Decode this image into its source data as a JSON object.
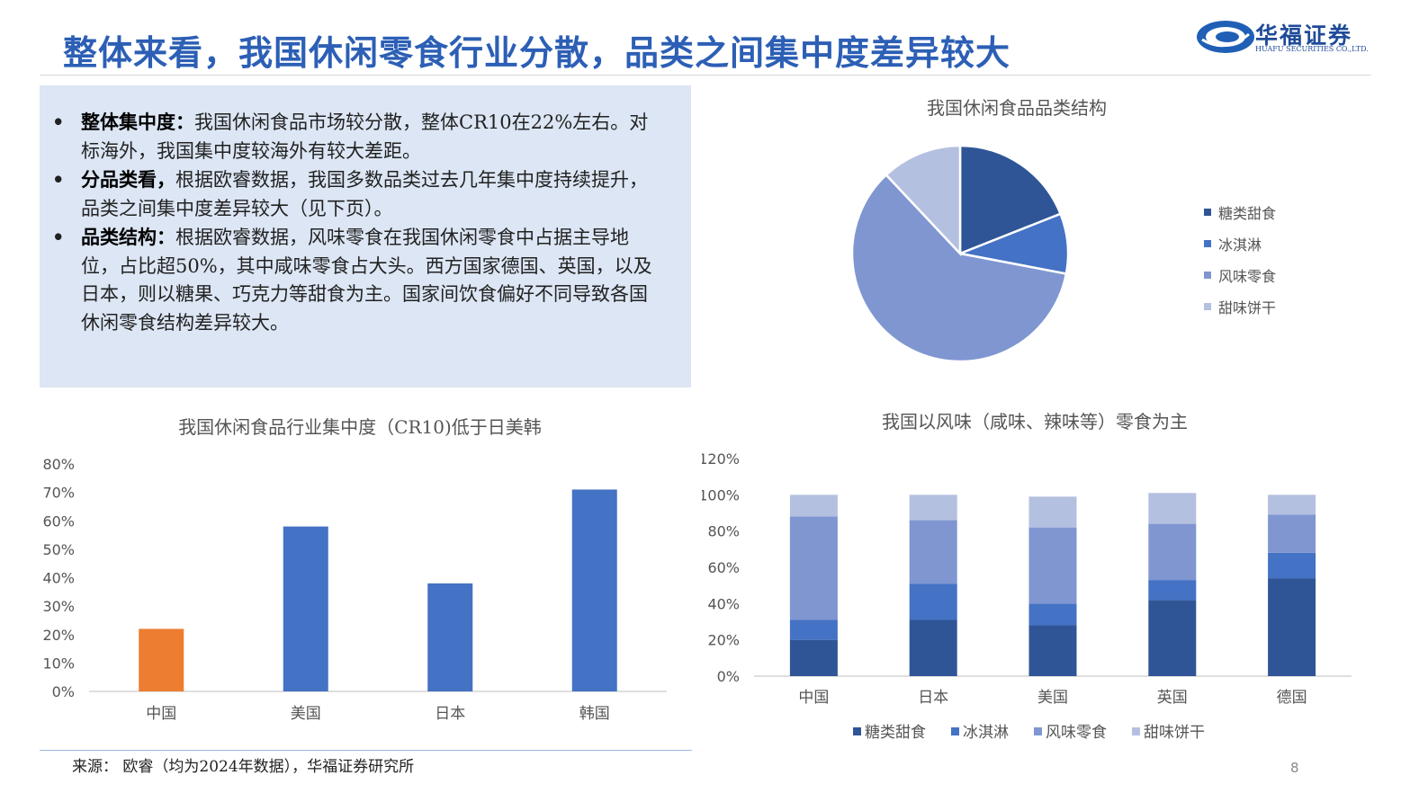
{
  "header": {
    "title": "整体来看，我国休闲零食行业分散，品类之间集中度差异较大",
    "logo_cn": "华福证券",
    "logo_en": "HUAFU SECURITIES CO.,LTD."
  },
  "bullets": [
    {
      "lead": "整体集中度：",
      "text": "我国休闲食品市场较分散，整体CR10在22%左右。对标海外，我国集中度较海外有较大差距。"
    },
    {
      "lead": "分品类看，",
      "text": "根据欧睿数据，我国多数品类过去几年集中度持续提升，品类之间集中度差异较大（见下页）。"
    },
    {
      "lead": "品类结构：",
      "text": "根据欧睿数据，风味零食在我国休闲零食中占据主导地位，占比超50%，其中咸味零食占大头。西方国家德国、英国，以及日本，则以糖果、巧克力等甜食为主。国家间饮食偏好不同导致各国休闲零食结构差异较大。"
    }
  ],
  "bullet_symbol": "•",
  "footer": {
    "source": "来源： 欧睿（均为2024年数据），华福证券研究所",
    "page": "8"
  },
  "chart_data": [
    {
      "type": "pie",
      "title": "我国休闲食品品类结构",
      "categories": [
        "糖类甜食",
        "冰淇淋",
        "风味零食",
        "甜味饼干"
      ],
      "values": [
        19,
        9,
        60,
        12
      ],
      "colors": [
        "#2f5597",
        "#4472c4",
        "#7f96d1",
        "#b4c0e0"
      ],
      "legend": "right"
    },
    {
      "type": "bar",
      "title": "我国休闲食品行业集中度（CR10)低于日美韩",
      "categories": [
        "中国",
        "美国",
        "日本",
        "韩国"
      ],
      "values": [
        22,
        58,
        38,
        71
      ],
      "colors": [
        "#ed7d31",
        "#4472c4",
        "#4472c4",
        "#4472c4"
      ],
      "ylim": [
        0,
        80
      ],
      "yticks": [
        "0%",
        "10%",
        "20%",
        "30%",
        "40%",
        "50%",
        "60%",
        "70%",
        "80%"
      ],
      "grid": false
    },
    {
      "type": "bar",
      "stacked": true,
      "title": "我国以风味（咸味、辣味等）零食为主",
      "categories": [
        "中国",
        "日本",
        "美国",
        "英国",
        "德国"
      ],
      "series": [
        {
          "name": "糖类甜食",
          "values": [
            20,
            31,
            28,
            42,
            54
          ],
          "color": "#2f5597"
        },
        {
          "name": "冰淇淋",
          "values": [
            11,
            20,
            12,
            11,
            14
          ],
          "color": "#4472c4"
        },
        {
          "name": "风味零食",
          "values": [
            57,
            35,
            42,
            31,
            21
          ],
          "color": "#7f96d1"
        },
        {
          "name": "甜味饼干",
          "values": [
            12,
            14,
            17,
            17,
            11
          ],
          "color": "#b4c0e0"
        }
      ],
      "ylim": [
        0,
        120
      ],
      "yticks": [
        "0%",
        "20%",
        "40%",
        "60%",
        "80%",
        "100%",
        "120%"
      ],
      "legend": "bottom",
      "grid": false
    }
  ]
}
